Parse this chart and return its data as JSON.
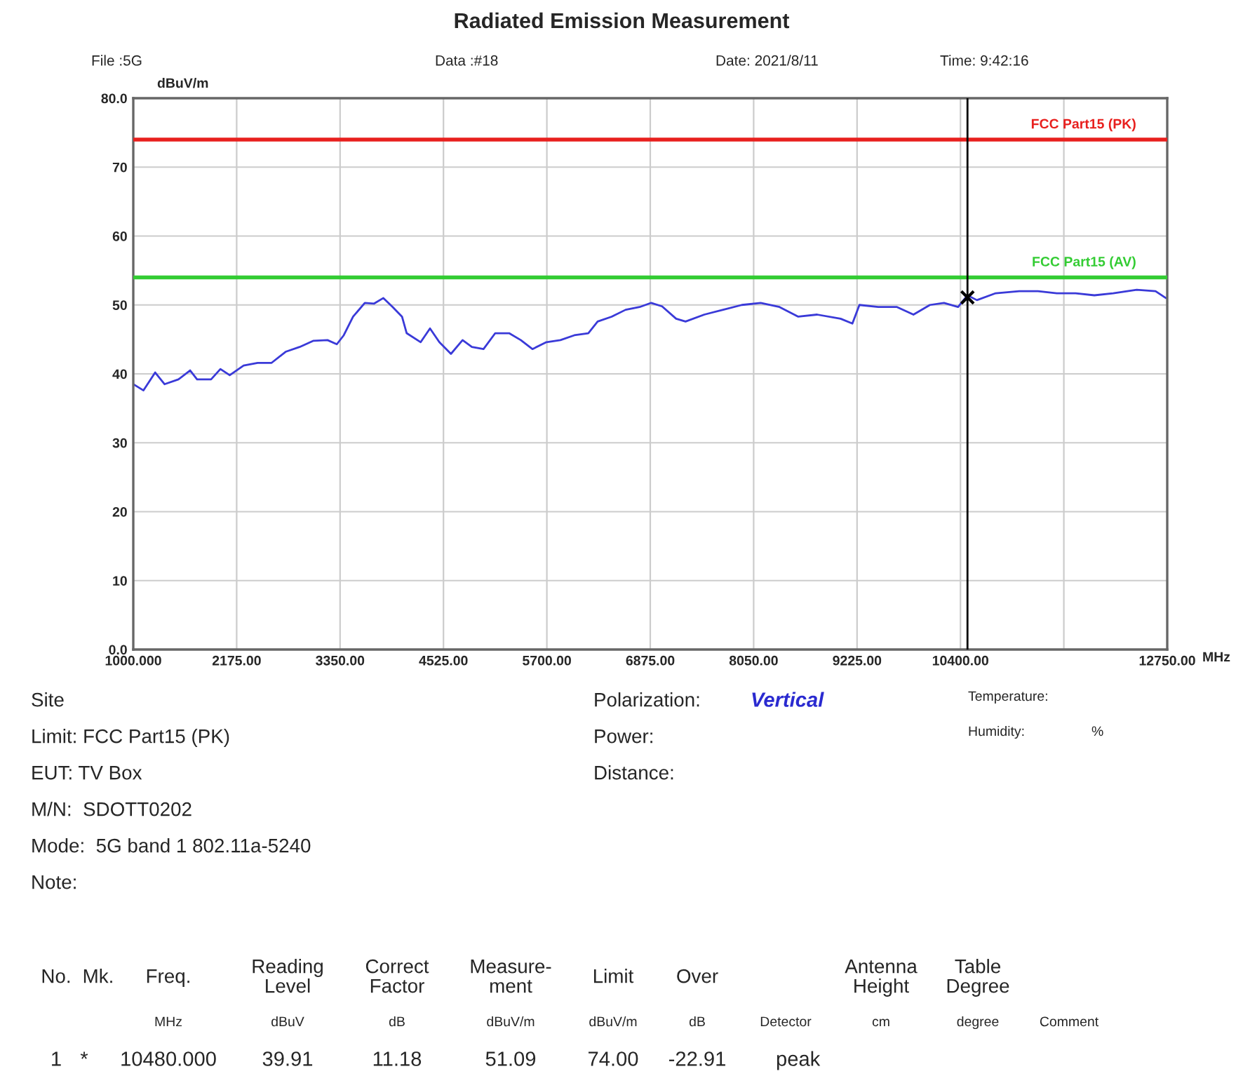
{
  "chart_data": {
    "type": "line",
    "title": "Radiated Emission Measurement",
    "xlabel": "MHz",
    "ylabel": "dBuV/m",
    "xlim": [
      1000,
      12750
    ],
    "xticks": [
      {
        "value": 1000,
        "label": "1000.000"
      },
      {
        "value": 2175,
        "label": "2175.00"
      },
      {
        "value": 3350,
        "label": "3350.00"
      },
      {
        "value": 4525,
        "label": "4525.00"
      },
      {
        "value": 5700,
        "label": "5700.00"
      },
      {
        "value": 6875,
        "label": "6875.00"
      },
      {
        "value": 8050,
        "label": "8050.00"
      },
      {
        "value": 9225,
        "label": "9225.00"
      },
      {
        "value": 10400,
        "label": "10400.00"
      },
      {
        "value": 11575,
        "label": null
      },
      {
        "value": 12750,
        "label": "12750.00"
      }
    ],
    "ylim": [
      0,
      80
    ],
    "yticks": [
      {
        "value": 0,
        "label": "0.0"
      },
      10,
      20,
      30,
      40,
      50,
      60,
      70,
      {
        "value": 80,
        "label": "80.0"
      }
    ],
    "grid": true,
    "marker": "none",
    "line_style": "solid",
    "series": [
      {
        "color": "#3a3ad8",
        "x": [
          1000,
          1116,
          1249,
          1355,
          1513,
          1646,
          1725,
          1884,
          1990,
          2096,
          2254,
          2413,
          2572,
          2731,
          2890,
          3048,
          3207,
          3313,
          3392,
          3498,
          3631,
          3737,
          3842,
          3948,
          4054,
          4107,
          4266,
          4372,
          4478,
          4610,
          4742,
          4848,
          4980,
          5113,
          5271,
          5404,
          5536,
          5695,
          5854,
          6012,
          6171,
          6277,
          6436,
          6595,
          6754,
          6886,
          7009,
          7169,
          7276,
          7489,
          7703,
          7916,
          8130,
          8344,
          8557,
          8771,
          9038,
          9172,
          9252,
          9465,
          9679,
          9866,
          10053,
          10213,
          10373,
          10480,
          10587,
          10801,
          11068,
          11281,
          11495,
          11709,
          11922,
          12136,
          12403,
          12617,
          12734
        ],
        "values": [
          38.5,
          37.6,
          40.2,
          38.5,
          39.2,
          40.5,
          39.2,
          39.2,
          40.7,
          39.8,
          41.2,
          41.6,
          41.6,
          43.2,
          43.9,
          44.8,
          44.9,
          44.3,
          45.6,
          48.3,
          50.3,
          50.2,
          51.0,
          49.7,
          48.3,
          45.9,
          44.6,
          46.6,
          44.6,
          42.9,
          44.9,
          43.9,
          43.6,
          45.9,
          45.9,
          44.9,
          43.6,
          44.6,
          44.9,
          45.6,
          45.9,
          47.6,
          48.3,
          49.3,
          49.7,
          50.3,
          49.8,
          48.0,
          47.6,
          48.6,
          49.3,
          50.0,
          50.3,
          49.7,
          48.3,
          48.6,
          48.0,
          47.3,
          50.0,
          49.7,
          49.7,
          48.6,
          50.0,
          50.3,
          49.7,
          51.4,
          50.7,
          51.7,
          52.0,
          52.0,
          51.7,
          51.7,
          51.4,
          51.7,
          52.2,
          52.0,
          51.0
        ]
      },
      {
        "type": "scatter",
        "marker": "cross",
        "color": "#000000",
        "x": [
          10480
        ],
        "values": [
          51.09
        ]
      }
    ],
    "ref_lines": [
      {
        "axis": "y",
        "value": 74,
        "label": "FCC Part15 (PK)",
        "color": "#e8201e"
      },
      {
        "axis": "y",
        "value": 54,
        "label": "FCC Part15 (AV)",
        "color": "#33cc33"
      },
      {
        "axis": "x",
        "value": 10480,
        "color": "#000000"
      }
    ],
    "annotations": [
      "File :5G",
      "Data :#18",
      "Date: 2021/8/11",
      "Time: 9:42:16",
      "Site",
      "Limit: FCC Part15 (PK)",
      "EUT: TV Box",
      "M/N:  SDOTT0202",
      "Mode:  5G band 1 802.11a-5240",
      "Note:",
      "Polarization:",
      "Vertical",
      "Power:",
      "Distance:",
      "Temperature:",
      "Humidity:",
      "%",
      "No.",
      "Mk.",
      "Freq.",
      "Reading\nLevel",
      "Correct\nFactor",
      "Measure-\nment",
      "Limit",
      "Over",
      "Antenna\nHeight",
      "Table\nDegree",
      "MHz",
      "dBuV",
      "dB",
      "dBuV/m",
      "dBuV/m",
      "dB",
      "Detector",
      "cm",
      "degree",
      "Comment",
      "1",
      "*",
      "10480.000",
      "39.91",
      "11.18",
      "51.09",
      "74.00",
      "-22.91",
      "peak"
    ]
  }
}
